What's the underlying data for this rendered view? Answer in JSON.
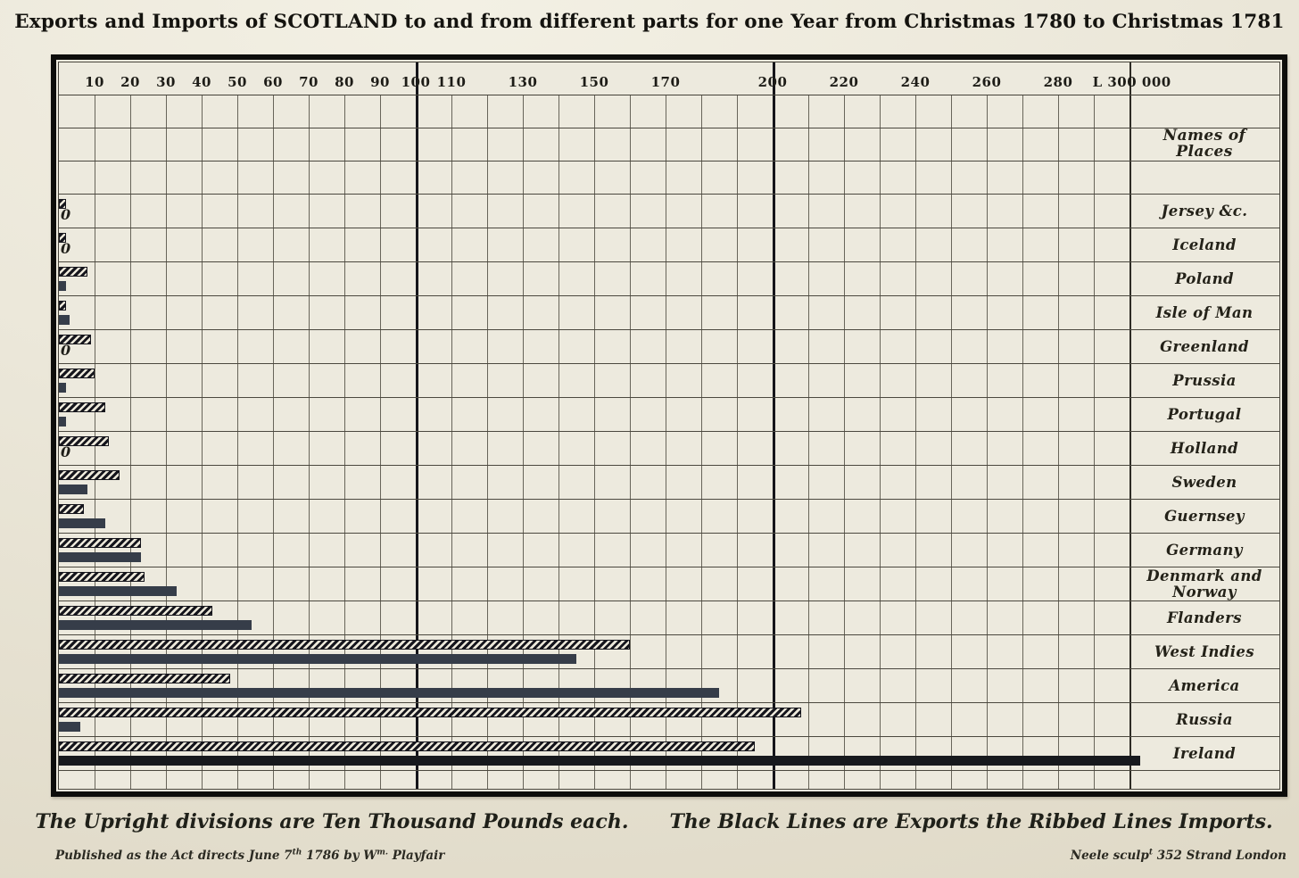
{
  "page": {
    "title": "Exports and Imports of SCOTLAND to and from different parts for one Year from Christmas 1780 to Christmas 1781",
    "names_header": "Names of Places",
    "caption": {
      "part1": "The Upright divisions are Ten Thousand Pounds each.",
      "part2": "The Black Lines are Exports the Ribbed Lines Imports."
    },
    "imprint_left": {
      "pre": "Published as the Act directs   June  7",
      "sup1": "th",
      "mid": " 1786  by W",
      "sup2": "m.",
      "post": " Playfair"
    },
    "imprint_right": {
      "pre": "Neele sculp",
      "sup1": "t",
      "post": "  352 Strand   London"
    }
  },
  "colors": {
    "paper": "#edeade",
    "ink": "#15151c",
    "export_bar": "#363d49",
    "export_bar_dark": "#17191d",
    "grid_minor": "#504d43",
    "grid_heavy": "#15151a"
  },
  "chart_data": {
    "type": "bar",
    "orientation": "horizontal",
    "title": "Exports and Imports of SCOTLAND to and from different parts for one Year from Christmas 1780 to Christmas 1781",
    "xlabel": "Pounds (thousands); each upright division = ten thousand pounds",
    "ylabel": "Names of Places",
    "xlim": [
      0,
      300
    ],
    "grid": {
      "minor_step": 10,
      "major_lines": [
        100,
        200
      ],
      "names_divider_at": 300
    },
    "x_ticks": [
      {
        "v": 10,
        "label": "10"
      },
      {
        "v": 20,
        "label": "20"
      },
      {
        "v": 30,
        "label": "30"
      },
      {
        "v": 40,
        "label": "40"
      },
      {
        "v": 50,
        "label": "50"
      },
      {
        "v": 60,
        "label": "60"
      },
      {
        "v": 70,
        "label": "70"
      },
      {
        "v": 80,
        "label": "80"
      },
      {
        "v": 90,
        "label": "90"
      },
      {
        "v": 100,
        "label": "100"
      },
      {
        "v": 110,
        "label": "110"
      },
      {
        "v": 130,
        "label": "130"
      },
      {
        "v": 150,
        "label": "150"
      },
      {
        "v": 170,
        "label": "170"
      },
      {
        "v": 200,
        "label": "200"
      },
      {
        "v": 220,
        "label": "220"
      },
      {
        "v": 240,
        "label": "240"
      },
      {
        "v": 260,
        "label": "260"
      },
      {
        "v": 280,
        "label": "280"
      },
      {
        "v": 300,
        "label": "L 300 000"
      }
    ],
    "categories": [
      "Jersey &c.",
      "Iceland",
      "Poland",
      "Isle of Man",
      "Greenland",
      "Prussia",
      "Portugal",
      "Holland",
      "Sweden",
      "Guernsey",
      "Germany",
      "Denmark and Norway",
      "Flanders",
      "West Indies",
      "America",
      "Russia",
      "Ireland"
    ],
    "series": [
      {
        "name": "Imports (ribbed lines)",
        "style": "ribbed",
        "values": [
          2,
          2,
          8,
          2,
          9,
          10,
          13,
          14,
          17,
          7,
          23,
          24,
          43,
          160,
          48,
          208,
          195
        ]
      },
      {
        "name": "Exports (black lines)",
        "style": "solid",
        "values": [
          0,
          0,
          2,
          3,
          0,
          2,
          2,
          0,
          8,
          13,
          23,
          33,
          54,
          145,
          185,
          6,
          303
        ]
      }
    ],
    "zero_exports_marked_with": "0",
    "legend_note": "Black Lines are Exports; Ribbed Lines are Imports"
  }
}
